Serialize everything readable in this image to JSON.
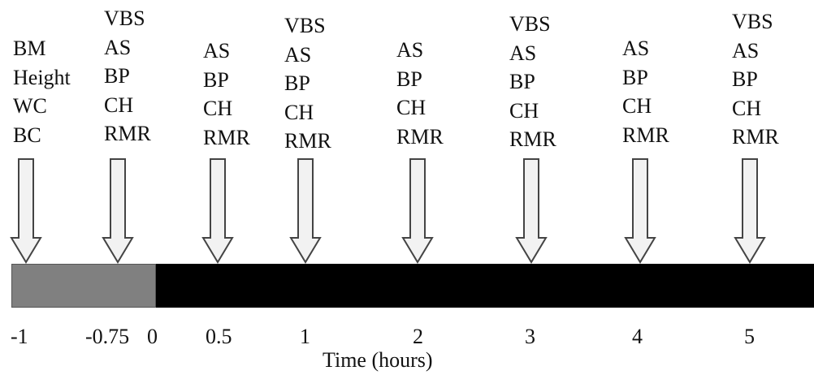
{
  "columns": [
    {
      "time": "-1",
      "measures": [
        "BM",
        "Height",
        "WC",
        "BC"
      ]
    },
    {
      "time": "-0.75",
      "measures": [
        "VBS",
        "AS",
        "BP",
        "CH",
        "RMR"
      ]
    },
    {
      "time": "0.5",
      "measures": [
        "AS",
        "BP",
        "CH",
        "RMR"
      ]
    },
    {
      "time": "1",
      "measures": [
        "VBS",
        "AS",
        "BP",
        "CH",
        "RMR"
      ]
    },
    {
      "time": "2",
      "measures": [
        "AS",
        "BP",
        "CH",
        "RMR"
      ]
    },
    {
      "time": "3",
      "measures": [
        "VBS",
        "AS",
        "BP",
        "CH",
        "RMR"
      ]
    },
    {
      "time": "4",
      "measures": [
        "AS",
        "BP",
        "CH",
        "RMR"
      ]
    },
    {
      "time": "5",
      "measures": [
        "VBS",
        "AS",
        "BP",
        "CH",
        "RMR"
      ]
    }
  ],
  "extra_tick": "0",
  "axis_title": "Time (hours)",
  "colors": {
    "pre_bar": "#808080",
    "main_bar": "#000000",
    "arrow_fill": "#f2f2f2",
    "arrow_stroke": "#444444"
  }
}
